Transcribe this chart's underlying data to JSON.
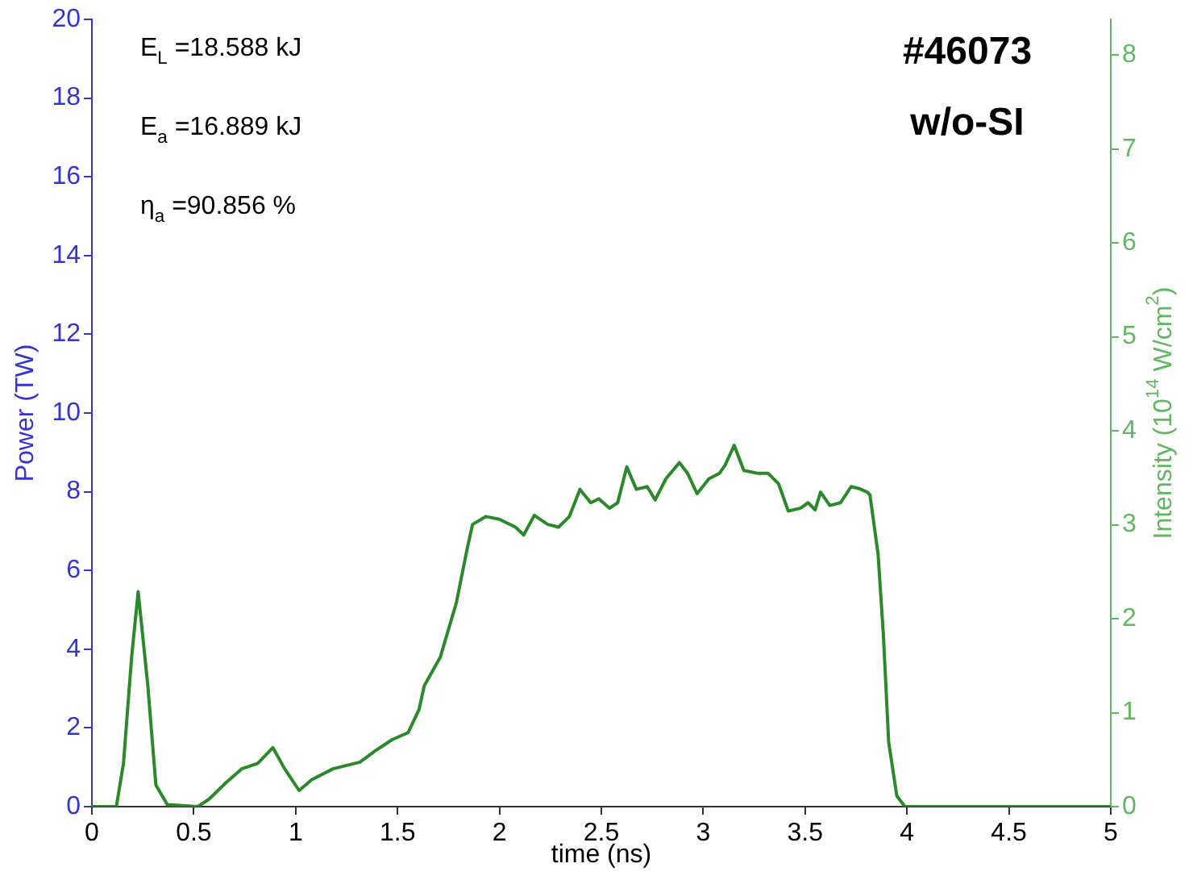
{
  "chart_data": {
    "type": "line",
    "xlabel": "time (ns)",
    "ylabel": "Power (TW)",
    "y2label": "Intensity (10$^{14}$ W/cm$^{2}$)",
    "annotations": [
      "E$_{L}$ =18.588 kJ",
      "E$_{a}$ =16.889 kJ",
      "η$_{a}$ =90.856 %",
      "#46073",
      "w/o-SI"
    ],
    "series": [
      {
        "color": "#2a8a2a",
        "x": [
          0,
          0.12,
          0.155,
          0.195,
          0.227,
          0.274,
          0.314,
          0.37,
          0.52,
          0.577,
          0.656,
          0.735,
          0.814,
          0.888,
          0.946,
          1.017,
          1.078,
          1.183,
          1.315,
          1.394,
          1.473,
          1.552,
          1.605,
          1.631,
          1.71,
          1.789,
          1.842,
          1.868,
          1.934,
          2.0,
          2.079,
          2.119,
          2.171,
          2.237,
          2.29,
          2.343,
          2.395,
          2.448,
          2.488,
          2.54,
          2.58,
          2.625,
          2.672,
          2.725,
          2.764,
          2.817,
          2.883,
          2.923,
          2.97,
          3.028,
          3.08,
          3.107,
          3.152,
          3.199,
          3.265,
          3.318,
          3.37,
          3.417,
          3.476,
          3.515,
          3.549,
          3.576,
          3.621,
          3.674,
          3.726,
          3.765,
          3.805,
          3.818,
          3.858,
          3.884,
          3.91,
          3.95,
          3.99,
          5
        ],
        "values": [
          0,
          0,
          1.1,
          3.8,
          5.46,
          3.1,
          0.55,
          0.05,
          0,
          0.2,
          0.6,
          0.96,
          1.1,
          1.5,
          0.96,
          0.41,
          0.68,
          0.96,
          1.13,
          1.43,
          1.7,
          1.88,
          2.46,
          3.07,
          3.8,
          5.19,
          6.56,
          7.17,
          7.37,
          7.3,
          7.1,
          6.9,
          7.4,
          7.17,
          7.1,
          7.37,
          8.06,
          7.72,
          7.82,
          7.58,
          7.72,
          8.63,
          8.06,
          8.13,
          7.79,
          8.33,
          8.74,
          8.47,
          7.95,
          8.33,
          8.47,
          8.67,
          9.18,
          8.54,
          8.47,
          8.47,
          8.2,
          7.51,
          7.58,
          7.72,
          7.54,
          7.99,
          7.65,
          7.72,
          8.13,
          8.08,
          7.99,
          7.92,
          6.42,
          4.37,
          1.64,
          0.27,
          0,
          0
        ]
      }
    ],
    "xlim": [
      0,
      5
    ],
    "xticks": [
      0,
      0.5,
      1,
      1.5,
      2,
      2.5,
      3,
      3.5,
      4,
      4.5,
      5
    ],
    "ylim": [
      0,
      20
    ],
    "yticks": [
      0,
      2,
      4,
      6,
      8,
      10,
      12,
      14,
      16,
      18,
      20
    ],
    "y2lim": [
      0,
      8.38
    ],
    "y2ticks": [
      0,
      1,
      2,
      3,
      4,
      5,
      6,
      7,
      8
    ],
    "grid": false,
    "legend": false
  }
}
